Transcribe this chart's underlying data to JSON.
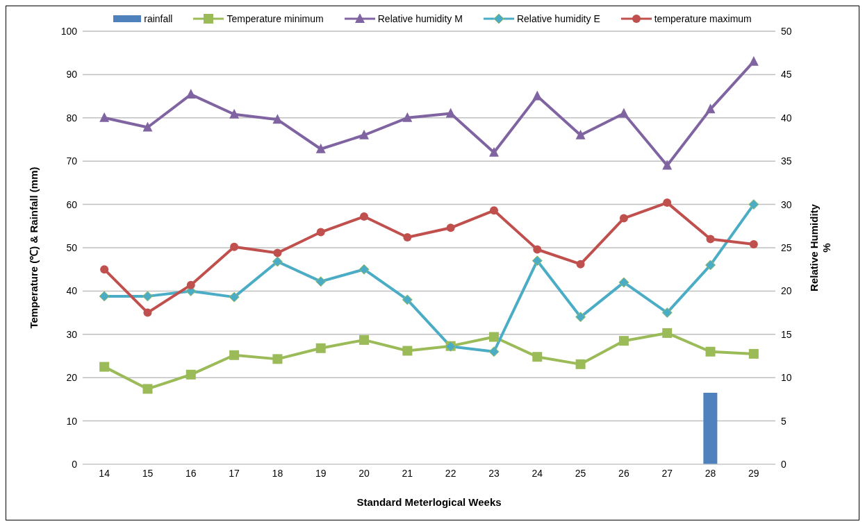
{
  "chart_data": {
    "type": "line",
    "xlabel": "Standard Meterlogical Weeks",
    "ylabel": "Temperature (℃) & Rainfall (mm)",
    "y2label": "Relative Humidity %",
    "categories": [
      "14",
      "15",
      "16",
      "17",
      "18",
      "19",
      "20",
      "21",
      "22",
      "23",
      "24",
      "25",
      "26",
      "27",
      "28",
      "29"
    ],
    "series": [
      {
        "name": "rainfall",
        "type": "bar",
        "color": "#4f81bd",
        "values": [
          null,
          null,
          null,
          null,
          null,
          null,
          null,
          null,
          null,
          null,
          null,
          null,
          null,
          null,
          16.5,
          null
        ]
      },
      {
        "name": "Temperature minimum",
        "color": "#9bbb59",
        "marker": "square",
        "values": [
          22.5,
          17.4,
          20.7,
          25.2,
          24.3,
          26.8,
          28.7,
          26.2,
          27.3,
          29.4,
          24.8,
          23.1,
          28.5,
          30.3,
          26,
          25.5
        ]
      },
      {
        "name": "Relative humidity M",
        "color": "#8064a2",
        "marker": "triangle",
        "axis": "y2",
        "values": [
          40,
          38.9,
          42.7,
          40.4,
          39.8,
          36.4,
          38,
          40,
          40.5,
          36,
          42.5,
          38,
          40.5,
          34.5,
          41,
          46.5
        ]
      },
      {
        "name": "Relative humidity E",
        "color": "#4bacc6",
        "marker": "diamond",
        "axis": "y2",
        "values": [
          19.4,
          19.4,
          20,
          19.3,
          23.4,
          21.1,
          22.5,
          19,
          13.6,
          13,
          23.5,
          17,
          21,
          17.5,
          23,
          30
        ]
      },
      {
        "name": "temperature maximum",
        "color": "#c0504d",
        "marker": "circle",
        "values": [
          45,
          35,
          41.4,
          50.2,
          48.8,
          53.6,
          57.2,
          52.4,
          54.6,
          58.6,
          49.6,
          46.2,
          56.8,
          60.4,
          52,
          50.8
        ]
      }
    ],
    "ylim": [
      0,
      100
    ],
    "yticks": [
      0,
      10,
      20,
      30,
      40,
      50,
      60,
      70,
      80,
      90,
      100
    ],
    "y2lim": [
      0,
      50
    ],
    "y2ticks": [
      0,
      5,
      10,
      15,
      20,
      25,
      30,
      35,
      40,
      45,
      50
    ],
    "grid": "y",
    "legend": "top"
  }
}
